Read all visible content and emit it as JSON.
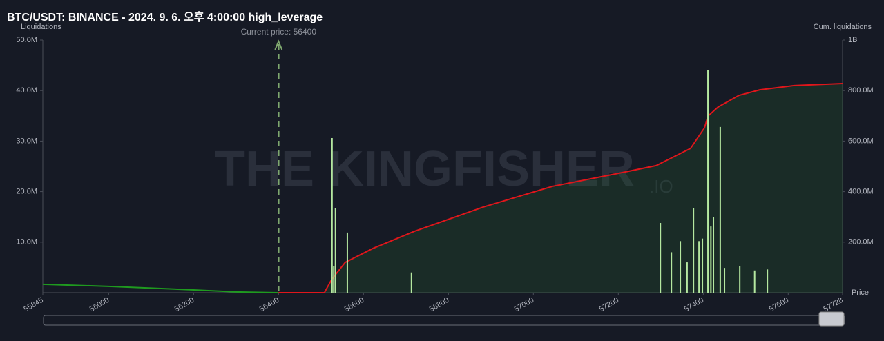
{
  "chart_data": {
    "type": "bar",
    "title": "BTC/USDT: BINANCE - 2024. 9. 6. 오후 4:00:00 high_leverage",
    "y_label": "Liquidations",
    "y2_label": "Cum. liquidations",
    "x_label": "Price",
    "watermark": "THE KINGFISHER",
    "watermark_suffix": ".IO",
    "annotation": {
      "label": "Current price: 56400",
      "x": 56400
    },
    "xlim": [
      55845,
      57728
    ],
    "xticks": [
      55845,
      56000,
      56200,
      56400,
      56600,
      56800,
      57000,
      57200,
      57400,
      57600,
      57728
    ],
    "ylim": [
      0,
      50000000
    ],
    "yticks": [
      {
        "value": 10000000,
        "label": "10.0M"
      },
      {
        "value": 20000000,
        "label": "20.0M"
      },
      {
        "value": 30000000,
        "label": "30.0M"
      },
      {
        "value": 40000000,
        "label": "40.0M"
      },
      {
        "value": 50000000,
        "label": "50.0M"
      }
    ],
    "y2lim": [
      0,
      1000000000
    ],
    "y2ticks": [
      {
        "value": 200000000,
        "label": "200.0M"
      },
      {
        "value": 400000000,
        "label": "400.0M"
      },
      {
        "value": 600000000,
        "label": "600.0M"
      },
      {
        "value": 800000000,
        "label": "800.0M"
      },
      {
        "value": 1000000000,
        "label": "1B"
      }
    ],
    "color": "#b5e8a0",
    "x": [
      56526,
      56530,
      56534,
      56562,
      56713,
      57299,
      57325,
      57346,
      57362,
      57377,
      57390,
      57398,
      57411,
      57418,
      57424,
      57440,
      57450,
      57486,
      57521,
      57551
    ],
    "values": [
      30600000,
      5300000,
      16700000,
      11900000,
      4000000,
      13800000,
      8000000,
      10200000,
      6000000,
      16700000,
      10200000,
      10700000,
      44000000,
      13100000,
      14900000,
      32800000,
      4900000,
      5200000,
      4400000,
      4600000
    ],
    "lines": [
      {
        "color": "#1f9a1f",
        "axis": "y2",
        "x": [
          55845,
          56000,
          56200,
          56300,
          56400
        ],
        "values": [
          33000000,
          25000000,
          11000000,
          3000000,
          0
        ]
      },
      {
        "color": "#e0161b",
        "axis": "y2",
        "fill": "rgba(40,110,50,0.22)",
        "x": [
          56400,
          56508,
          56525,
          56557,
          56622,
          56720,
          56882,
          57045,
          57208,
          57289,
          57338,
          57370,
          57403,
          57411,
          57435,
          57484,
          57533,
          57614,
          57728
        ],
        "values": [
          0,
          0,
          52000000,
          120000000,
          175000000,
          243000000,
          339000000,
          421000000,
          475000000,
          503000000,
          544000000,
          571000000,
          653000000,
          699000000,
          735000000,
          781000000,
          803000000,
          820000000,
          828000000
        ]
      }
    ]
  }
}
